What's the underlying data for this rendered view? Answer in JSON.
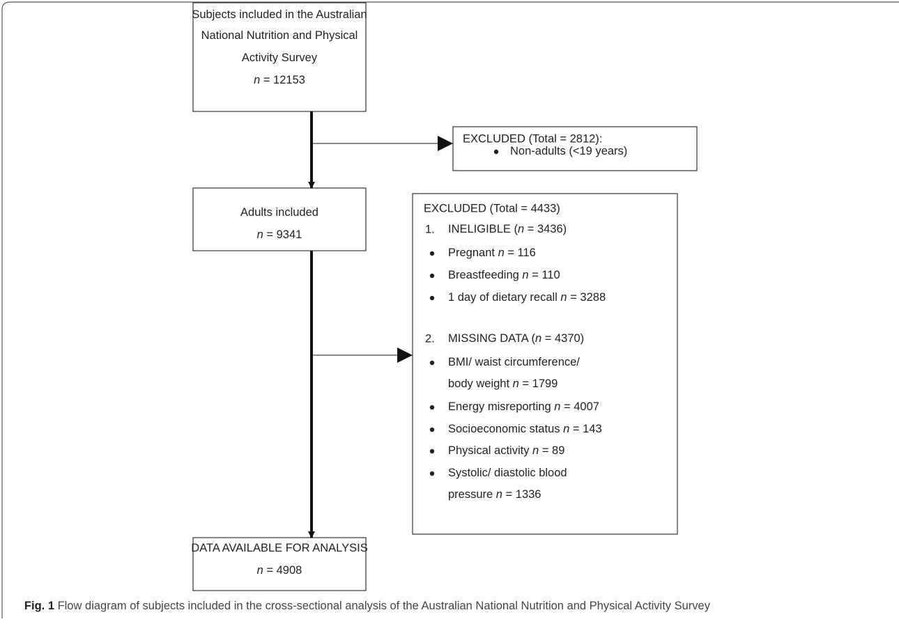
{
  "nodes": [
    {
      "lines": [
        [
          {
            "text": "Subjects included in the Australian"
          }
        ],
        [
          {
            "text": "National Nutrition and Physical"
          }
        ],
        [
          {
            "text": "Activity Survey"
          }
        ],
        [
          {
            "text": "n",
            "italic": true
          },
          {
            "text": " = 12153"
          }
        ]
      ]
    },
    {
      "lines": [
        [
          {
            "text": "Adults included"
          }
        ],
        [
          {
            "text": "n",
            "italic": true
          },
          {
            "text": " = 9341"
          }
        ]
      ]
    },
    {
      "lines": [
        [
          {
            "text": "DATA AVAILABLE FOR ANALYSIS"
          }
        ],
        [
          {
            "text": "n",
            "italic": true
          },
          {
            "text": " = 4908"
          }
        ]
      ]
    }
  ],
  "exclusions": [
    {
      "title": "EXCLUDED (Total = 2812):",
      "items": [
        {
          "lines": [
            [
              {
                "text": "Non-adults (<19 years)"
              }
            ]
          ]
        }
      ]
    },
    {
      "title": "EXCLUDED (Total = 4433)",
      "items": [
        {
          "number": "1.",
          "lines": [
            [
              {
                "text": "INELIGIBLE ("
              },
              {
                "text": "n",
                "italic": true
              },
              {
                "text": " = 3436)"
              }
            ]
          ]
        },
        {
          "lines": [
            [
              {
                "text": "Pregnant "
              },
              {
                "text": "n",
                "italic": true
              },
              {
                "text": " = 116"
              }
            ]
          ]
        },
        {
          "lines": [
            [
              {
                "text": "Breastfeeding "
              },
              {
                "text": "n",
                "italic": true
              },
              {
                "text": " = 110"
              }
            ]
          ]
        },
        {
          "lines": [
            [
              {
                "text": "1 day of dietary recall "
              },
              {
                "text": "n",
                "italic": true
              },
              {
                "text": " = 3288"
              }
            ]
          ]
        },
        {
          "number": "2.",
          "lines": [
            [
              {
                "text": "MISSING DATA ("
              },
              {
                "text": "n",
                "italic": true
              },
              {
                "text": " = 4370)"
              }
            ]
          ]
        },
        {
          "lines": [
            [
              {
                "text": "BMI/ waist circumference/"
              }
            ],
            [
              {
                "text": "body weight "
              },
              {
                "text": "n",
                "italic": true
              },
              {
                "text": " = 1799"
              }
            ]
          ]
        },
        {
          "lines": [
            [
              {
                "text": "Energy misreporting "
              },
              {
                "text": "n",
                "italic": true
              },
              {
                "text": " = 4007"
              }
            ]
          ]
        },
        {
          "lines": [
            [
              {
                "text": "Socioeconomic status "
              },
              {
                "text": "n",
                "italic": true
              },
              {
                "text": " = 143"
              }
            ]
          ]
        },
        {
          "lines": [
            [
              {
                "text": "Physical activity "
              },
              {
                "text": "n",
                "italic": true
              },
              {
                "text": " = 89"
              }
            ]
          ]
        },
        {
          "lines": [
            [
              {
                "text": "Systolic/ diastolic blood"
              }
            ],
            [
              {
                "text": "pressure "
              },
              {
                "text": "n",
                "italic": true
              },
              {
                "text": " = 1336"
              }
            ]
          ]
        }
      ]
    }
  ],
  "caption": {
    "label": "Fig. 1",
    "text": " Flow diagram of subjects included in the cross-sectional analysis of the Australian National Nutrition and Physical Activity Survey"
  }
}
